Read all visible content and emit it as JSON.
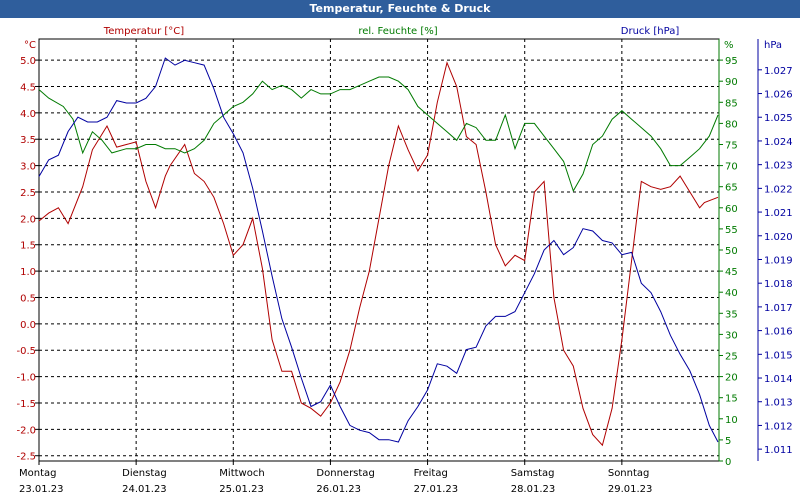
{
  "window_title": "Temperatur, Feuchte & Druck",
  "colors": {
    "temperature": "#b00000",
    "humidity": "#007a00",
    "pressure": "#0000a0",
    "grid": "#000000",
    "titlebar": "#2f5e9c"
  },
  "chart_data": {
    "type": "line",
    "title": "Temperatur, Feuchte & Druck",
    "grid": true,
    "x": {
      "day_labels": [
        "Montag",
        "Dienstag",
        "Mittwoch",
        "Donnerstag",
        "Freitag",
        "Samstag",
        "Sonntag"
      ],
      "date_labels": [
        "23.01.23",
        "24.01.23",
        "25.01.23",
        "26.01.23",
        "27.01.23",
        "28.01.23",
        "29.01.23"
      ],
      "range": [
        "23.01.23 00:00",
        "29.01.23 24:00"
      ]
    },
    "axes": {
      "temperature": {
        "label": "Temperatur [°C]",
        "unit_label": "°C",
        "side": "left",
        "range": [
          -2.6,
          5.4
        ],
        "ticks": [
          "5.0",
          "4.5",
          "4.0",
          "3.5",
          "3.0",
          "2.5",
          "2.0",
          "1.5",
          "1.0",
          "0.5",
          "0.0",
          "-0.5",
          "-1.0",
          "-1.5",
          "-2.0",
          "-2.5"
        ]
      },
      "humidity": {
        "label": "rel. Feuchte [%]",
        "unit_label": "%",
        "side": "right",
        "range": [
          0,
          100
        ],
        "ticks": [
          "95",
          "90",
          "85",
          "80",
          "75",
          "70",
          "65",
          "60",
          "55",
          "50",
          "45",
          "40",
          "35",
          "30",
          "25",
          "20",
          "15",
          "10",
          "5",
          "0"
        ]
      },
      "pressure": {
        "label": "Druck [hPa]",
        "unit_label": "hPa",
        "side": "right",
        "range": [
          1.0105,
          1.0283
        ],
        "ticks": [
          "1.027",
          "1.026",
          "1.025",
          "1.024",
          "1.023",
          "1.022",
          "1.021",
          "1.020",
          "1.019",
          "1.018",
          "1.017",
          "1.016",
          "1.015",
          "1.014",
          "1.013",
          "1.012",
          "1.011"
        ]
      }
    },
    "series": [
      {
        "name": "Temperatur [°C]",
        "axis": "temperature",
        "x": [
          0,
          0.1,
          0.2,
          0.3,
          0.45,
          0.55,
          0.7,
          0.8,
          0.9,
          1.0,
          1.1,
          1.2,
          1.3,
          1.35,
          1.5,
          1.6,
          1.7,
          1.8,
          1.9,
          2.0,
          2.1,
          2.2,
          2.3,
          2.4,
          2.5,
          2.6,
          2.7,
          2.8,
          2.9,
          3.0,
          3.1,
          3.2,
          3.3,
          3.4,
          3.5,
          3.6,
          3.7,
          3.8,
          3.9,
          4.0,
          4.1,
          4.2,
          4.3,
          4.4,
          4.5,
          4.6,
          4.7,
          4.8,
          4.9,
          5.0,
          5.1,
          5.2,
          5.3,
          5.4,
          5.5,
          5.6,
          5.7,
          5.8,
          5.9,
          6.0,
          6.1,
          6.2,
          6.3,
          6.4,
          6.5,
          6.6,
          6.7,
          6.8,
          6.85,
          6.99
        ],
        "y": [
          1.95,
          2.1,
          2.2,
          1.9,
          2.6,
          3.3,
          3.75,
          3.35,
          3.4,
          3.45,
          2.7,
          2.2,
          2.8,
          3.0,
          3.4,
          2.85,
          2.7,
          2.4,
          1.9,
          1.3,
          1.5,
          2.0,
          1.05,
          -0.3,
          -0.9,
          -0.9,
          -1.5,
          -1.6,
          -1.75,
          -1.5,
          -1.1,
          -0.5,
          0.3,
          1.0,
          2.0,
          3.0,
          3.75,
          3.3,
          2.9,
          3.2,
          4.2,
          4.95,
          4.5,
          3.55,
          3.4,
          2.5,
          1.5,
          1.1,
          1.3,
          1.2,
          2.5,
          2.7,
          0.5,
          -0.5,
          -0.8,
          -1.6,
          -2.1,
          -2.3,
          -1.6,
          -0.3,
          1.2,
          2.7,
          2.6,
          2.55,
          2.6,
          2.8,
          2.5,
          2.2,
          2.3,
          2.4
        ]
      },
      {
        "name": "rel. Feuchte [%]",
        "axis": "humidity",
        "x": [
          0,
          0.1,
          0.25,
          0.35,
          0.45,
          0.55,
          0.65,
          0.75,
          0.9,
          1.0,
          1.1,
          1.2,
          1.3,
          1.4,
          1.5,
          1.6,
          1.7,
          1.8,
          1.9,
          2.0,
          2.1,
          2.2,
          2.3,
          2.4,
          2.5,
          2.6,
          2.7,
          2.8,
          2.9,
          3.0,
          3.1,
          3.2,
          3.3,
          3.4,
          3.5,
          3.6,
          3.7,
          3.8,
          3.9,
          4.0,
          4.1,
          4.2,
          4.3,
          4.4,
          4.5,
          4.6,
          4.7,
          4.8,
          4.9,
          5.0,
          5.1,
          5.2,
          5.3,
          5.4,
          5.5,
          5.6,
          5.7,
          5.8,
          5.9,
          6.0,
          6.1,
          6.2,
          6.3,
          6.4,
          6.5,
          6.6,
          6.7,
          6.8,
          6.9,
          6.99
        ],
        "y": [
          88,
          86,
          84,
          81,
          73,
          78,
          76,
          73,
          74,
          74,
          75,
          75,
          74,
          74,
          73,
          74,
          76,
          80,
          82,
          84,
          85,
          87,
          90,
          88,
          89,
          88,
          86,
          88,
          87,
          87,
          88,
          88,
          89,
          90,
          91,
          91,
          90,
          88,
          84,
          82,
          80,
          78,
          76,
          80,
          79,
          76,
          76,
          82,
          74,
          80,
          80,
          77,
          74,
          71,
          64,
          68,
          75,
          77,
          81,
          83,
          81,
          79,
          77,
          74,
          70,
          70,
          72,
          74,
          77,
          82
        ]
      },
      {
        "name": "Druck [hPa]",
        "axis": "pressure",
        "x": [
          0,
          0.1,
          0.2,
          0.3,
          0.4,
          0.5,
          0.6,
          0.7,
          0.8,
          0.9,
          1.0,
          1.1,
          1.2,
          1.3,
          1.4,
          1.5,
          1.6,
          1.7,
          1.8,
          1.9,
          2.0,
          2.1,
          2.2,
          2.3,
          2.4,
          2.5,
          2.6,
          2.7,
          2.8,
          2.9,
          3.0,
          3.1,
          3.2,
          3.3,
          3.4,
          3.5,
          3.6,
          3.7,
          3.8,
          3.9,
          4.0,
          4.1,
          4.2,
          4.3,
          4.4,
          4.5,
          4.6,
          4.7,
          4.8,
          4.9,
          5.0,
          5.1,
          5.2,
          5.3,
          5.4,
          5.5,
          5.6,
          5.7,
          5.8,
          5.9,
          6.0,
          6.1,
          6.2,
          6.3,
          6.4,
          6.5,
          6.6,
          6.7,
          6.8,
          6.9,
          6.99
        ],
        "y": [
          1.0225,
          1.0232,
          1.0234,
          1.0244,
          1.025,
          1.0248,
          1.0248,
          1.025,
          1.0257,
          1.0256,
          1.0256,
          1.0258,
          1.0263,
          1.0275,
          1.0272,
          1.0274,
          1.0273,
          1.0272,
          1.0262,
          1.025,
          1.0243,
          1.0235,
          1.022,
          1.0202,
          1.0183,
          1.0165,
          1.0153,
          1.014,
          1.0128,
          1.013,
          1.0137,
          1.0128,
          1.012,
          1.0118,
          1.0117,
          1.0114,
          1.0114,
          1.0113,
          1.0122,
          1.0128,
          1.0135,
          1.0146,
          1.0145,
          1.0142,
          1.0152,
          1.0153,
          1.0162,
          1.0166,
          1.0166,
          1.0168,
          1.0176,
          1.0184,
          1.0194,
          1.0198,
          1.0192,
          1.0195,
          1.0203,
          1.0202,
          1.0198,
          1.0197,
          1.0192,
          1.0193,
          1.018,
          1.0176,
          1.0168,
          1.0158,
          1.015,
          1.0143,
          1.0133,
          1.012,
          1.0113
        ]
      }
    ]
  }
}
